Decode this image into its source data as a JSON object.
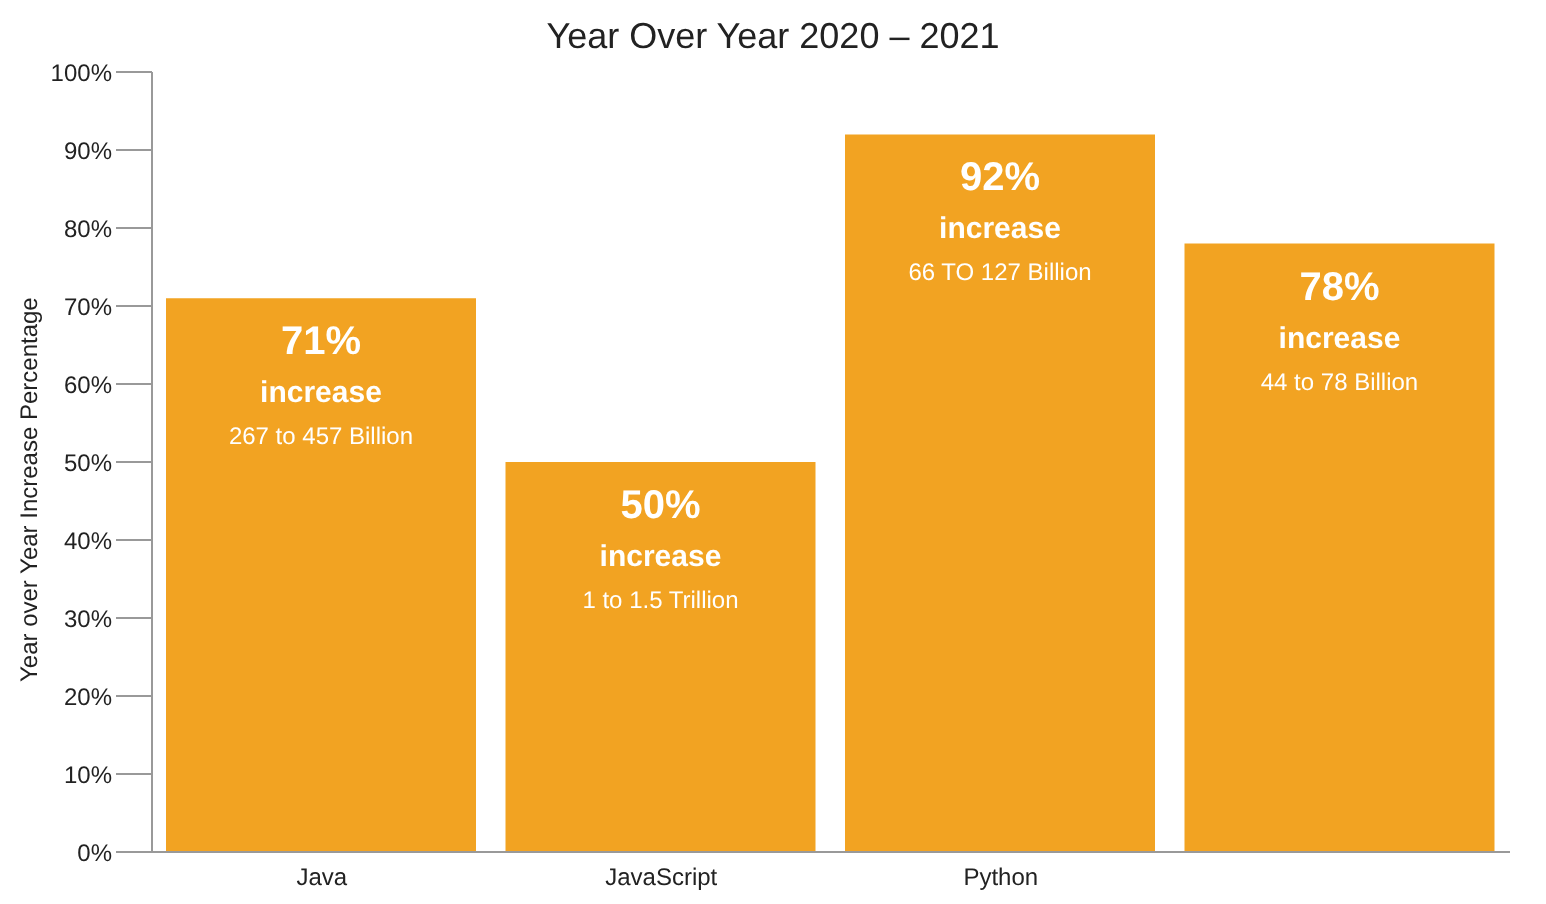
{
  "chart_data": {
    "type": "bar",
    "title": "Year Over Year 2020 – 2021",
    "ylabel": "Year over Year Increase Percentage",
    "categories": [
      "Java",
      "JavaScript",
      "Python",
      null
    ],
    "values": [
      71,
      50,
      92,
      78
    ],
    "color": "#f2a322",
    "value_labels": [
      "71%\nincrease\n267 to 457 Billion",
      "50%\nincrease\n1 to 1.5 Trillion",
      "92%\nincrease\n66 TO 127 Billion",
      "78%\nincrease\n44 to 78 Billion"
    ],
    "ylim": [
      0,
      100
    ],
    "yticks": [
      {
        "value": 0,
        "label": "0%"
      },
      {
        "value": 10,
        "label": "10%"
      },
      {
        "value": 20,
        "label": "20%"
      },
      {
        "value": 30,
        "label": "30%"
      },
      {
        "value": 40,
        "label": "40%"
      },
      {
        "value": 50,
        "label": "50%"
      },
      {
        "value": 60,
        "label": "60%"
      },
      {
        "value": 70,
        "label": "70%"
      },
      {
        "value": 80,
        "label": "80%"
      },
      {
        "value": 90,
        "label": "90%"
      },
      {
        "value": 100,
        "label": "100%"
      }
    ],
    "grid": false,
    "legend": false
  }
}
